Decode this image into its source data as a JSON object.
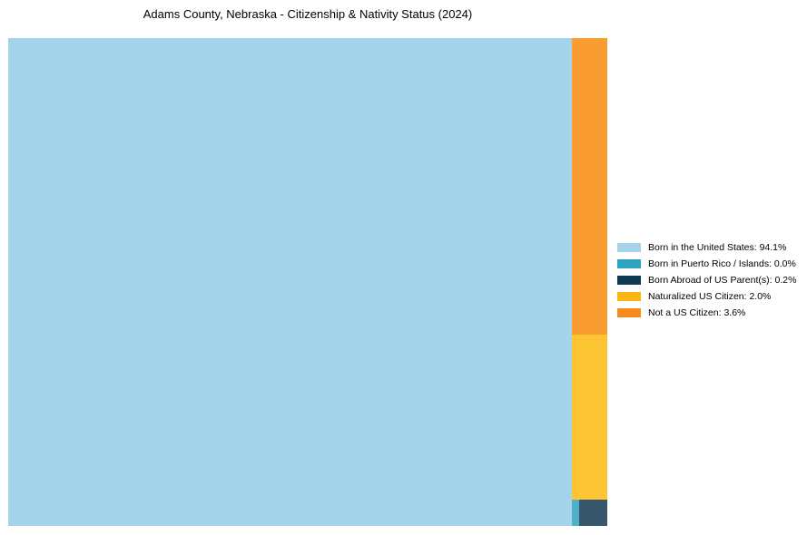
{
  "page": {
    "background": "#FFFFFF"
  },
  "header": {
    "title": "Adams County, Nebraska - Citizenship & Nativity Status (2024)"
  },
  "chart_data": {
    "type": "treemap",
    "title": "Adams County, Nebraska - Citizenship & Nativity Status (2024)",
    "unit": "percent",
    "grid": false,
    "legend_position": "right-center",
    "total_pct": 100,
    "segments": [
      {
        "label": "Born in the United States",
        "value_pct": 94.1,
        "fill_color": "#A5D3EA",
        "legend_color": "#A6D3EA",
        "legend_label": "Born in the United States: 94.1%"
      },
      {
        "label": "Born in Puerto Rico / Islands",
        "value_pct": 0.0,
        "fill_color": "#4FB0C7",
        "legend_color": "#2EA3C1",
        "legend_label": "Born in Puerto Rico / Islands: 0.0%"
      },
      {
        "label": "Born Abroad of US Parent(s)",
        "value_pct": 0.2,
        "fill_color": "#37586C",
        "legend_color": "#103A52",
        "legend_label": "Born Abroad of US Parent(s): 0.2%"
      },
      {
        "label": "Naturalized US Citizen",
        "value_pct": 2.0,
        "fill_color": "#FDC433",
        "legend_color": "#FBB614",
        "legend_label": "Naturalized US Citizen: 2.0%"
      },
      {
        "label": "Not a US Citizen",
        "value_pct": 3.6,
        "fill_color": "#F99C31",
        "legend_color": "#F78B20",
        "legend_label": "Not a US Citizen: 3.6%"
      }
    ]
  }
}
